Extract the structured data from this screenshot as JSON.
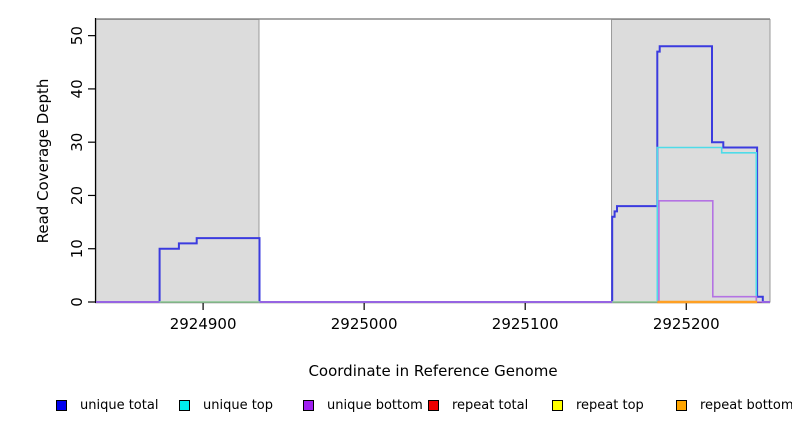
{
  "axes": {
    "xlabel": "Coordinate in Reference Genome",
    "ylabel": "Read Coverage Depth"
  },
  "chart_data": {
    "type": "line",
    "subtype": "step-coverage",
    "title": "",
    "xlabel": "Coordinate in Reference Genome",
    "ylabel": "Read Coverage Depth",
    "xlim": [
      2924833.5,
      2925252
    ],
    "ylim": [
      0,
      53.5
    ],
    "xticks": [
      2924900,
      2925000,
      2925100,
      2925200
    ],
    "yticks": [
      0,
      10,
      20,
      30,
      40,
      50
    ],
    "grid": false,
    "legend_position": "bottom",
    "shaded_regions": [
      {
        "name": "repeat-region-left",
        "x0": 2924833.5,
        "x1": 2924934.7
      },
      {
        "name": "repeat-region-right",
        "x0": 2925153.6,
        "x1": 2925252.0
      }
    ],
    "colors": {
      "shade_fill": "#dcdcdc",
      "shade_border": "#9a9a9a",
      "top_border": "#8a8a8a",
      "axis": "#000000"
    },
    "series": [
      {
        "name": "unique total",
        "color": "#3b3bdf",
        "width": 2,
        "points": [
          [
            2924833.5,
            0
          ],
          [
            2924873,
            0
          ],
          [
            2924873,
            10
          ],
          [
            2924885,
            10
          ],
          [
            2924885,
            11
          ],
          [
            2924896,
            11
          ],
          [
            2924896,
            12
          ],
          [
            2924935,
            12
          ],
          [
            2924935,
            0
          ],
          [
            2925154,
            0
          ],
          [
            2925154,
            16
          ],
          [
            2925155.5,
            16
          ],
          [
            2925155.5,
            17
          ],
          [
            2925157,
            17
          ],
          [
            2925157,
            18
          ],
          [
            2925182,
            18
          ],
          [
            2925182,
            47
          ],
          [
            2925183.5,
            47
          ],
          [
            2925183.5,
            48
          ],
          [
            2925216,
            48
          ],
          [
            2925216,
            30
          ],
          [
            2925223,
            30
          ],
          [
            2925223,
            29
          ],
          [
            2925244,
            29
          ],
          [
            2925244,
            1
          ],
          [
            2925247.5,
            1
          ],
          [
            2925247.5,
            0
          ],
          [
            2925252,
            0
          ]
        ]
      },
      {
        "name": "unique top",
        "color": "#4fdbe8",
        "width": 1.6,
        "points": [
          [
            2925182,
            0
          ],
          [
            2925182,
            29
          ],
          [
            2925222,
            29
          ],
          [
            2925222,
            28
          ],
          [
            2925243.5,
            28
          ],
          [
            2925243.5,
            0
          ]
        ]
      },
      {
        "name": "unique bottom",
        "color": "#b473e3",
        "width": 1.6,
        "points": [
          [
            2924833.5,
            0
          ],
          [
            2925183,
            0
          ],
          [
            2925183,
            19
          ],
          [
            2925216.5,
            19
          ],
          [
            2925216.5,
            1
          ],
          [
            2925243.5,
            1
          ],
          [
            2925243.5,
            0
          ],
          [
            2925252,
            0
          ]
        ]
      },
      {
        "name": "baseline overlap",
        "color": "#8fd98f",
        "width": 1.6,
        "segments": [
          [
            [
              2924873,
              0
            ],
            [
              2924935,
              0
            ]
          ],
          [
            [
              2925154,
              0
            ],
            [
              2925182,
              0
            ]
          ]
        ]
      },
      {
        "name": "repeat bottom",
        "color": "#ffa022",
        "width": 2.6,
        "points": [
          [
            2925182,
            0
          ],
          [
            2925244,
            0
          ]
        ]
      }
    ],
    "legend": {
      "items": [
        {
          "label": "unique total",
          "color": "#0000ee"
        },
        {
          "label": "unique top",
          "color": "#00eeee"
        },
        {
          "label": "unique bottom",
          "color": "#a020f0"
        },
        {
          "label": "repeat total",
          "color": "#ee0000"
        },
        {
          "label": "repeat top",
          "color": "#ffff00"
        },
        {
          "label": "repeat bottom",
          "color": "#ffa500"
        }
      ]
    }
  }
}
